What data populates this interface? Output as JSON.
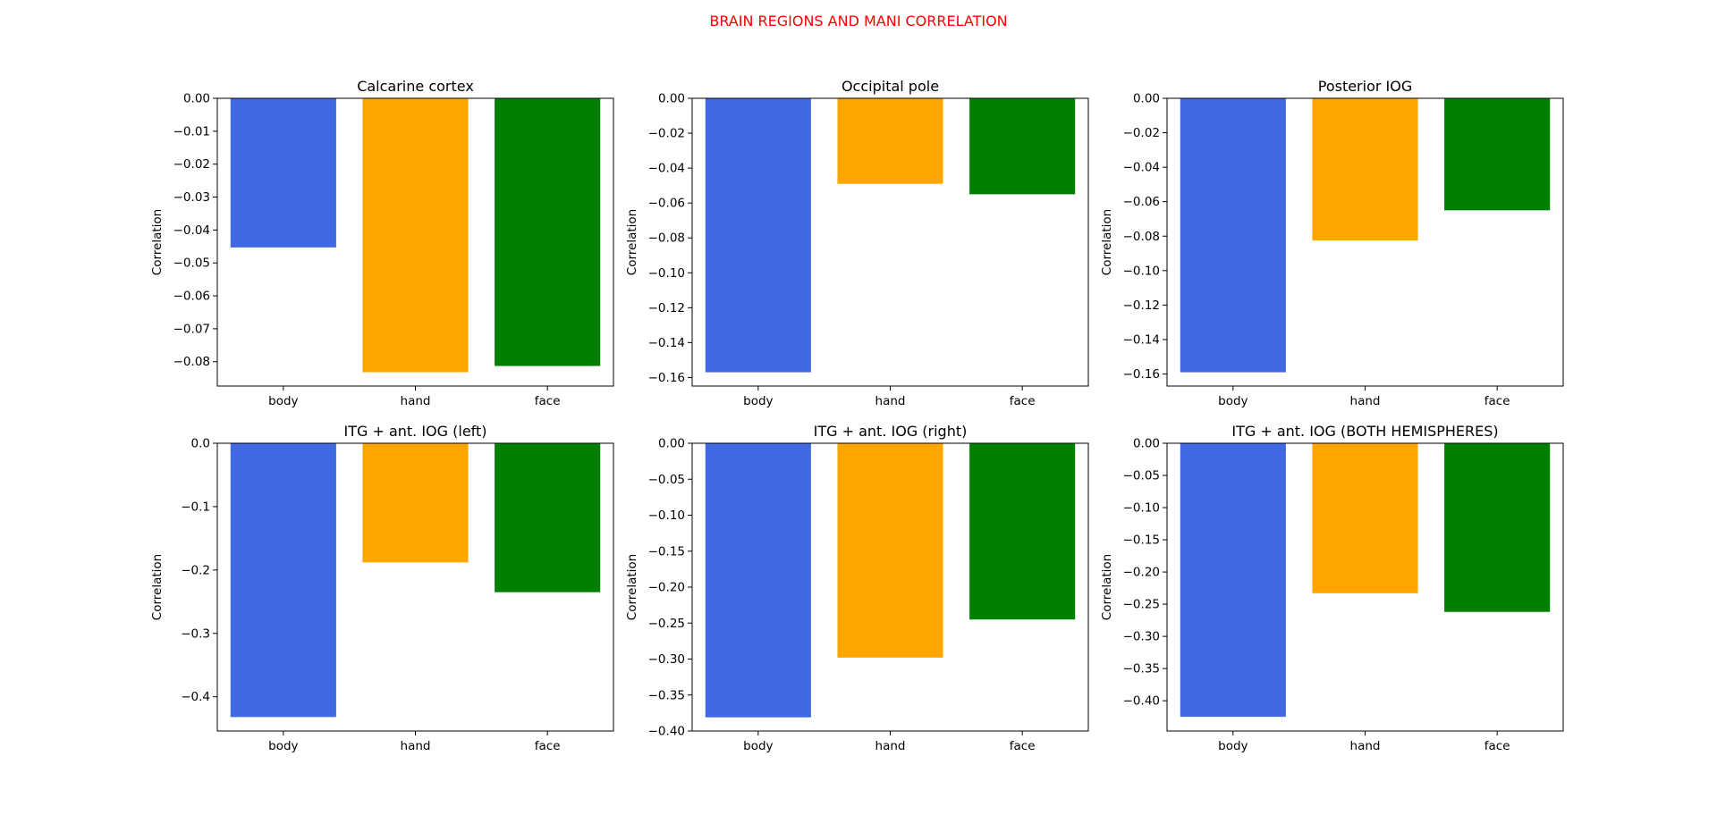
{
  "figure": {
    "title": "BRAIN REGIONS AND MANI CORRELATION",
    "title_color": "#ff0000"
  },
  "chart_data": [
    {
      "type": "bar",
      "title": "Calcarine cortex",
      "ylabel": "Correlation",
      "categories": [
        "body",
        "hand",
        "face"
      ],
      "values": [
        -0.0453,
        -0.0832,
        -0.0813
      ],
      "colors": [
        "#4169e1",
        "#ffa500",
        "#008000"
      ],
      "ylim": [
        -0.0874,
        0.0
      ],
      "yticks": [
        0.0,
        -0.01,
        -0.02,
        -0.03,
        -0.04,
        -0.05,
        -0.06,
        -0.07,
        -0.08
      ],
      "ytick_labels": [
        "0.00",
        "−0.01",
        "−0.02",
        "−0.03",
        "−0.04",
        "−0.05",
        "−0.06",
        "−0.07",
        "−0.08"
      ],
      "grid": false
    },
    {
      "type": "bar",
      "title": "Occipital pole",
      "ylabel": "Correlation",
      "categories": [
        "body",
        "hand",
        "face"
      ],
      "values": [
        -0.157,
        -0.049,
        -0.055
      ],
      "colors": [
        "#4169e1",
        "#ffa500",
        "#008000"
      ],
      "ylim": [
        -0.1649,
        0.0
      ],
      "yticks": [
        0.0,
        -0.02,
        -0.04,
        -0.06,
        -0.08,
        -0.1,
        -0.12,
        -0.14,
        -0.16
      ],
      "ytick_labels": [
        "0.00",
        "−0.02",
        "−0.04",
        "−0.06",
        "−0.08",
        "−0.10",
        "−0.12",
        "−0.14",
        "−0.16"
      ],
      "grid": false
    },
    {
      "type": "bar",
      "title": "Posterior IOG",
      "ylabel": "Correlation",
      "categories": [
        "body",
        "hand",
        "face"
      ],
      "values": [
        -0.159,
        -0.0825,
        -0.065
      ],
      "colors": [
        "#4169e1",
        "#ffa500",
        "#008000"
      ],
      "ylim": [
        -0.167,
        0.0
      ],
      "yticks": [
        0.0,
        -0.02,
        -0.04,
        -0.06,
        -0.08,
        -0.1,
        -0.12,
        -0.14,
        -0.16
      ],
      "ytick_labels": [
        "0.00",
        "−0.02",
        "−0.04",
        "−0.06",
        "−0.08",
        "−0.10",
        "−0.12",
        "−0.14",
        "−0.16"
      ],
      "grid": false
    },
    {
      "type": "bar",
      "title": "ITG + ant. IOG (left)",
      "ylabel": "Correlation",
      "categories": [
        "body",
        "hand",
        "face"
      ],
      "values": [
        -0.432,
        -0.188,
        -0.235
      ],
      "colors": [
        "#4169e1",
        "#ffa500",
        "#008000"
      ],
      "ylim": [
        -0.454,
        0.0
      ],
      "yticks": [
        0.0,
        -0.1,
        -0.2,
        -0.3,
        -0.4
      ],
      "ytick_labels": [
        "0.0",
        "−0.1",
        "−0.2",
        "−0.3",
        "−0.4"
      ],
      "grid": false
    },
    {
      "type": "bar",
      "title": "ITG + ant. IOG (right)",
      "ylabel": "Correlation",
      "categories": [
        "body",
        "hand",
        "face"
      ],
      "values": [
        -0.381,
        -0.298,
        -0.245
      ],
      "colors": [
        "#4169e1",
        "#ffa500",
        "#008000"
      ],
      "ylim": [
        -0.4,
        0.0
      ],
      "yticks": [
        0.0,
        -0.05,
        -0.1,
        -0.15,
        -0.2,
        -0.25,
        -0.3,
        -0.35,
        -0.4
      ],
      "ytick_labels": [
        "0.00",
        "−0.05",
        "−0.10",
        "−0.15",
        "−0.20",
        "−0.25",
        "−0.30",
        "−0.35",
        "−0.40"
      ],
      "grid": false
    },
    {
      "type": "bar",
      "title": "ITG + ant. IOG (BOTH HEMISPHERES)",
      "ylabel": "Correlation",
      "categories": [
        "body",
        "hand",
        "face"
      ],
      "values": [
        -0.425,
        -0.233,
        -0.262
      ],
      "colors": [
        "#4169e1",
        "#ffa500",
        "#008000"
      ],
      "ylim": [
        -0.447,
        0.0
      ],
      "yticks": [
        0.0,
        -0.05,
        -0.1,
        -0.15,
        -0.2,
        -0.25,
        -0.3,
        -0.35,
        -0.4
      ],
      "ytick_labels": [
        "0.00",
        "−0.05",
        "−0.10",
        "−0.15",
        "−0.20",
        "−0.25",
        "−0.30",
        "−0.35",
        "−0.40"
      ],
      "grid": false
    }
  ]
}
